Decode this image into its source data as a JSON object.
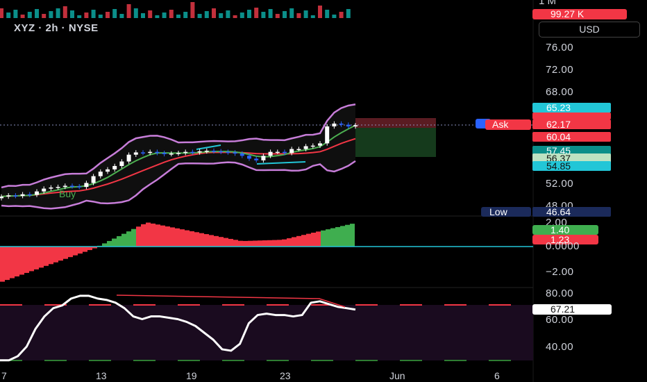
{
  "symbol_header": "XYZ · 2h · NYSE",
  "currency": "USD",
  "volume_axis": {
    "top_label": "1 M",
    "last_value": "99.27 K"
  },
  "price_axis": {
    "labels": [
      "76.00",
      "72.00",
      "68.00",
      "52.00",
      "48.00"
    ]
  },
  "price_tags": [
    {
      "text": "65.23",
      "color": "#22c6d7"
    },
    {
      "text": "62.17",
      "color": "#f23645"
    },
    {
      "text": "60.04",
      "color": "#f23645"
    },
    {
      "text": "57.45",
      "color": "#0b8f8a"
    },
    {
      "text": "56.37",
      "color": "#bde3c2"
    },
    {
      "text": "54.85",
      "color": "#22c6d7"
    },
    {
      "text": "46.64",
      "color": "#1b2a5a"
    }
  ],
  "ask_label": "Ask",
  "low_label": "Low",
  "buy_label": "Buy",
  "macd_axis": {
    "labels": [
      "2.00",
      "0.0000",
      "−2.00"
    ],
    "tag_green": "1.40",
    "tag_red": "1.23"
  },
  "rsi_axis": {
    "labels": [
      "80.00",
      "60.00",
      "40.00"
    ],
    "value": "67.21"
  },
  "date_axis": [
    "7",
    "13",
    "19",
    "23",
    "Jun",
    "6"
  ],
  "colors": {
    "bg": "#000000",
    "up": "#ffffff",
    "down": "#2962ff",
    "bb": "#c77dd9",
    "ma_green": "#4caf50",
    "ma_red": "#f23645",
    "hist_up": "#3fae4f",
    "hist_red": "#f23645",
    "rsi_fill": "#1a0b1f"
  },
  "chart_data": {
    "type": "line",
    "series": [
      {
        "name": "close",
        "values": [
          49.6,
          49.8,
          49.7,
          50.0,
          49.9,
          50.5,
          51.0,
          51.2,
          51.3,
          51.5,
          51.4,
          51.3,
          52.0,
          53.2,
          54.0,
          54.4,
          55.0,
          55.8,
          57.0,
          57.4,
          57.3,
          57.5,
          57.3,
          57.1,
          57.2,
          57.3,
          57.5,
          57.4,
          57.6,
          57.7,
          57.6,
          57.5,
          57.4,
          57.2,
          56.8,
          56.3,
          56.0,
          56.8,
          57.5,
          57.5,
          57.3,
          58.0,
          58.0,
          58.5,
          58.6,
          59.0,
          62.0,
          62.5,
          62.3,
          62.0,
          62.2
        ]
      },
      {
        "name": "rsi",
        "values": [
          30,
          30,
          33,
          40,
          53,
          62,
          68,
          70,
          75,
          77,
          77,
          75,
          74,
          72,
          68,
          62,
          60,
          62,
          62,
          61,
          60,
          58,
          55,
          50,
          45,
          38,
          37,
          42,
          57,
          63,
          64,
          63,
          63,
          62,
          63,
          72,
          73,
          71,
          69,
          68,
          67
        ]
      }
    ],
    "macd_histogram_range": [
      -2.0,
      2.0
    ],
    "rsi_levels": [
      70,
      30
    ]
  }
}
